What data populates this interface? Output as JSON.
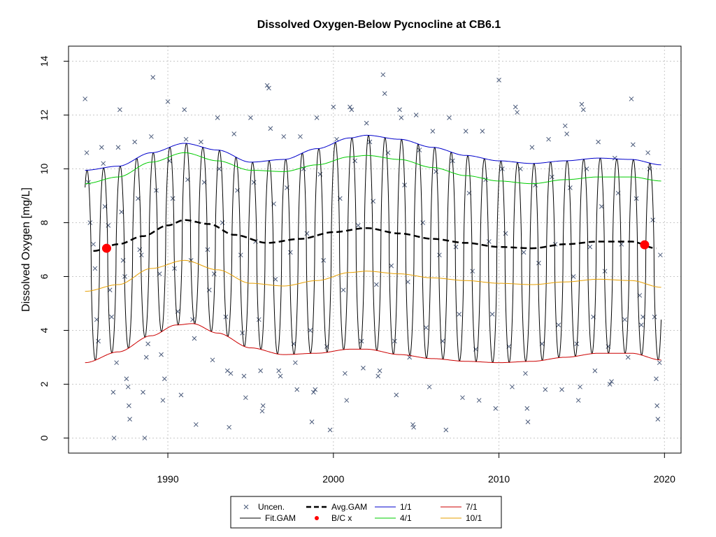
{
  "chart_data": {
    "type": "line",
    "title": "Dissolved Oxygen-Below Pycnocline at CB6.1",
    "xlabel": "",
    "ylabel": "Dissolved Oxygen [mg/L]",
    "xlim": [
      1984.0,
      2021.0
    ],
    "ylim": [
      -0.56,
      14.56
    ],
    "xticks": [
      1990,
      2000,
      2010,
      2020
    ],
    "yticks": [
      0,
      2,
      4,
      6,
      8,
      10,
      12,
      14
    ],
    "grid": true,
    "legend_position": "bottom",
    "legend": [
      {
        "label": "Uncen.",
        "kind": "marker-x",
        "color": "#4a5a7a"
      },
      {
        "label": "Fit.GAM",
        "kind": "line",
        "color": "#000000"
      },
      {
        "label": "Avg.GAM",
        "kind": "dashed-line",
        "color": "#000000"
      },
      {
        "label": "B/C x",
        "kind": "marker-dot",
        "color": "#ff0000"
      },
      {
        "label": "1/1",
        "kind": "line",
        "color": "#0000cc"
      },
      {
        "label": "4/1",
        "kind": "line",
        "color": "#00cc00"
      },
      {
        "label": "7/1",
        "kind": "line",
        "color": "#cc0000"
      },
      {
        "label": "10/1",
        "kind": "line",
        "color": "#e69f00"
      }
    ],
    "series": [
      {
        "name": "1/1",
        "color": "#0000cc",
        "x": [
          1985.0,
          1987.0,
          1989.0,
          1991.0,
          1993.0,
          1995.0,
          1997.0,
          1999.0,
          2001.0,
          2002.0,
          2004.0,
          2006.0,
          2008.0,
          2010.0,
          2012.0,
          2014.0,
          2016.0,
          2018.0,
          2019.8
        ],
        "y": [
          9.95,
          10.1,
          10.6,
          10.95,
          10.7,
          10.25,
          10.35,
          10.75,
          11.15,
          11.25,
          11.1,
          10.8,
          10.5,
          10.3,
          10.2,
          10.3,
          10.4,
          10.35,
          10.15
        ]
      },
      {
        "name": "4/1",
        "color": "#00cc00",
        "x": [
          1985.0,
          1987.0,
          1989.0,
          1991.0,
          1993.0,
          1995.0,
          1997.0,
          1999.0,
          2001.0,
          2002.0,
          2004.0,
          2006.0,
          2008.0,
          2010.0,
          2012.0,
          2014.0,
          2016.0,
          2018.0,
          2019.8
        ],
        "y": [
          9.45,
          9.7,
          10.25,
          10.6,
          10.3,
          9.95,
          9.9,
          10.15,
          10.45,
          10.5,
          10.35,
          10.05,
          9.75,
          9.55,
          9.45,
          9.6,
          9.7,
          9.7,
          9.55
        ]
      },
      {
        "name": "7/1",
        "color": "#cc0000",
        "x": [
          1985.0,
          1987.0,
          1989.0,
          1990.5,
          1991.5,
          1993.0,
          1995.0,
          1997.0,
          1999.0,
          2001.0,
          2002.0,
          2004.0,
          2006.0,
          2008.0,
          2010.0,
          2012.0,
          2014.0,
          2016.0,
          2018.0,
          2019.8
        ],
        "y": [
          2.8,
          3.2,
          3.8,
          4.2,
          4.25,
          3.9,
          3.35,
          3.1,
          3.15,
          3.3,
          3.3,
          3.1,
          2.95,
          2.85,
          2.8,
          2.85,
          3.0,
          3.15,
          3.15,
          2.9
        ]
      },
      {
        "name": "10/1",
        "color": "#e69f00",
        "x": [
          1985.0,
          1987.0,
          1989.0,
          1991.0,
          1993.0,
          1995.0,
          1997.0,
          1999.0,
          2001.0,
          2002.0,
          2004.0,
          2006.0,
          2008.0,
          2010.0,
          2012.0,
          2014.0,
          2016.0,
          2018.0,
          2019.8
        ],
        "y": [
          5.45,
          5.7,
          6.3,
          6.6,
          6.25,
          5.75,
          5.65,
          5.85,
          6.15,
          6.2,
          6.1,
          5.95,
          5.85,
          5.75,
          5.7,
          5.8,
          5.9,
          5.85,
          5.6
        ]
      },
      {
        "name": "Avg.GAM",
        "color": "#000000",
        "dashed": true,
        "x": [
          1985.5,
          1987.0,
          1988.5,
          1990.0,
          1991.0,
          1992.5,
          1994.0,
          1996.0,
          1998.0,
          2000.0,
          2002.0,
          2004.0,
          2006.0,
          2008.0,
          2010.0,
          2012.0,
          2014.0,
          2016.0,
          2018.0,
          2019.5
        ],
        "y": [
          6.95,
          7.2,
          7.5,
          7.9,
          8.1,
          7.95,
          7.55,
          7.25,
          7.4,
          7.65,
          7.8,
          7.6,
          7.4,
          7.25,
          7.1,
          7.05,
          7.2,
          7.3,
          7.3,
          7.05
        ]
      },
      {
        "name": "Fit.GAM",
        "color": "#000000",
        "seasonal": true,
        "x_start": 1985.0,
        "x_end": 2019.8,
        "upper_from": "1/1",
        "lower_from": "7/1",
        "peak_phase": 0.12,
        "sharpness": 1.6
      }
    ],
    "bc_points": [
      {
        "x": 1986.3,
        "y": 7.05,
        "label": "B/C x"
      },
      {
        "x": 2018.8,
        "y": 7.18,
        "label": "B/C x"
      }
    ],
    "uncensored_points": [
      [
        1985.0,
        12.6
      ],
      [
        1985.1,
        10.6
      ],
      [
        1985.2,
        9.5
      ],
      [
        1985.3,
        8.0
      ],
      [
        1985.5,
        7.2
      ],
      [
        1985.6,
        6.3
      ],
      [
        1985.7,
        4.4
      ],
      [
        1985.8,
        3.6
      ],
      [
        1986.0,
        10.8
      ],
      [
        1986.1,
        10.2
      ],
      [
        1986.2,
        8.6
      ],
      [
        1986.4,
        7.9
      ],
      [
        1986.5,
        5.5
      ],
      [
        1986.6,
        4.5
      ],
      [
        1986.7,
        1.7
      ],
      [
        1986.75,
        0.0
      ],
      [
        1986.9,
        2.8
      ],
      [
        1987.0,
        10.8
      ],
      [
        1987.2,
        8.4
      ],
      [
        1987.3,
        6.6
      ],
      [
        1987.4,
        6.0
      ],
      [
        1987.5,
        2.2
      ],
      [
        1987.6,
        1.9
      ],
      [
        1987.65,
        1.2
      ],
      [
        1987.7,
        0.7
      ],
      [
        1987.1,
        12.2
      ],
      [
        1988.0,
        11.0
      ],
      [
        1988.2,
        8.9
      ],
      [
        1988.3,
        7.0
      ],
      [
        1988.5,
        1.7
      ],
      [
        1988.6,
        0.0
      ],
      [
        1988.7,
        3.0
      ],
      [
        1988.8,
        3.5
      ],
      [
        1988.4,
        6.8
      ],
      [
        1989.0,
        11.2
      ],
      [
        1989.1,
        13.4
      ],
      [
        1989.3,
        9.2
      ],
      [
        1989.5,
        6.1
      ],
      [
        1989.6,
        3.1
      ],
      [
        1989.7,
        1.4
      ],
      [
        1989.8,
        2.2
      ],
      [
        1990.0,
        12.5
      ],
      [
        1990.1,
        10.3
      ],
      [
        1990.3,
        8.9
      ],
      [
        1990.4,
        6.3
      ],
      [
        1990.6,
        4.7
      ],
      [
        1990.8,
        1.6
      ],
      [
        1991.0,
        12.2
      ],
      [
        1991.1,
        11.1
      ],
      [
        1991.2,
        9.6
      ],
      [
        1991.4,
        6.6
      ],
      [
        1991.5,
        4.4
      ],
      [
        1991.6,
        3.7
      ],
      [
        1991.7,
        0.5
      ],
      [
        1992.0,
        11.0
      ],
      [
        1992.2,
        9.5
      ],
      [
        1992.4,
        7.0
      ],
      [
        1992.5,
        5.5
      ],
      [
        1992.7,
        2.9
      ],
      [
        1992.8,
        6.1
      ],
      [
        1993.0,
        11.9
      ],
      [
        1993.1,
        10.0
      ],
      [
        1993.3,
        8.0
      ],
      [
        1993.5,
        4.5
      ],
      [
        1993.6,
        2.5
      ],
      [
        1993.7,
        0.4
      ],
      [
        1993.8,
        2.4
      ],
      [
        1994.0,
        11.3
      ],
      [
        1994.2,
        9.2
      ],
      [
        1994.4,
        6.8
      ],
      [
        1994.5,
        3.9
      ],
      [
        1994.6,
        2.3
      ],
      [
        1994.7,
        1.5
      ],
      [
        1995.0,
        11.9
      ],
      [
        1995.2,
        9.5
      ],
      [
        1995.3,
        7.3
      ],
      [
        1995.5,
        4.4
      ],
      [
        1995.6,
        2.5
      ],
      [
        1995.7,
        1.0
      ],
      [
        1995.75,
        1.2
      ],
      [
        1996.0,
        13.1
      ],
      [
        1996.1,
        13.0
      ],
      [
        1996.2,
        11.5
      ],
      [
        1996.4,
        8.7
      ],
      [
        1996.5,
        5.9
      ],
      [
        1996.7,
        2.5
      ],
      [
        1996.8,
        2.3
      ],
      [
        1997.0,
        11.2
      ],
      [
        1997.2,
        9.3
      ],
      [
        1997.4,
        6.9
      ],
      [
        1997.6,
        3.5
      ],
      [
        1997.7,
        2.8
      ],
      [
        1997.8,
        1.8
      ],
      [
        1998.0,
        11.2
      ],
      [
        1998.2,
        10.0
      ],
      [
        1998.4,
        7.6
      ],
      [
        1998.6,
        4.0
      ],
      [
        1998.7,
        0.6
      ],
      [
        1998.8,
        1.7
      ],
      [
        1998.9,
        1.8
      ],
      [
        1999.0,
        11.9
      ],
      [
        1999.2,
        9.8
      ],
      [
        1999.4,
        6.6
      ],
      [
        1999.6,
        3.4
      ],
      [
        1999.8,
        0.3
      ],
      [
        2000.0,
        12.3
      ],
      [
        2000.2,
        11.1
      ],
      [
        2000.4,
        8.9
      ],
      [
        2000.6,
        5.5
      ],
      [
        2000.7,
        2.4
      ],
      [
        2000.8,
        1.4
      ],
      [
        2001.0,
        12.3
      ],
      [
        2001.1,
        12.2
      ],
      [
        2001.3,
        10.3
      ],
      [
        2001.5,
        7.9
      ],
      [
        2001.7,
        3.6
      ],
      [
        2001.8,
        2.6
      ],
      [
        2002.0,
        11.7
      ],
      [
        2002.2,
        11.0
      ],
      [
        2002.4,
        8.8
      ],
      [
        2002.6,
        5.7
      ],
      [
        2002.7,
        2.3
      ],
      [
        2002.8,
        2.5
      ],
      [
        2003.0,
        13.5
      ],
      [
        2003.1,
        12.8
      ],
      [
        2003.3,
        10.6
      ],
      [
        2003.5,
        6.4
      ],
      [
        2003.7,
        3.6
      ],
      [
        2003.8,
        1.6
      ],
      [
        2004.0,
        12.2
      ],
      [
        2004.1,
        11.9
      ],
      [
        2004.3,
        9.4
      ],
      [
        2004.5,
        5.8
      ],
      [
        2004.6,
        3.0
      ],
      [
        2004.8,
        0.5
      ],
      [
        2004.85,
        0.4
      ],
      [
        2005.0,
        12.0
      ],
      [
        2005.2,
        10.7
      ],
      [
        2005.4,
        8.0
      ],
      [
        2005.6,
        4.1
      ],
      [
        2005.8,
        1.9
      ],
      [
        2006.0,
        11.4
      ],
      [
        2006.2,
        9.9
      ],
      [
        2006.4,
        6.8
      ],
      [
        2006.6,
        3.6
      ],
      [
        2006.8,
        0.3
      ],
      [
        2007.0,
        11.9
      ],
      [
        2007.2,
        10.3
      ],
      [
        2007.4,
        7.1
      ],
      [
        2007.6,
        4.6
      ],
      [
        2007.8,
        1.5
      ],
      [
        2008.0,
        11.4
      ],
      [
        2008.2,
        9.1
      ],
      [
        2008.4,
        6.2
      ],
      [
        2008.6,
        3.3
      ],
      [
        2008.8,
        1.4
      ],
      [
        2009.0,
        11.4
      ],
      [
        2009.2,
        9.6
      ],
      [
        2009.4,
        7.3
      ],
      [
        2009.6,
        4.6
      ],
      [
        2009.8,
        1.1
      ],
      [
        2010.0,
        13.3
      ],
      [
        2010.2,
        10.0
      ],
      [
        2010.4,
        7.6
      ],
      [
        2010.6,
        3.4
      ],
      [
        2010.8,
        1.9
      ],
      [
        2011.0,
        12.3
      ],
      [
        2011.1,
        12.1
      ],
      [
        2011.3,
        10.0
      ],
      [
        2011.5,
        6.9
      ],
      [
        2011.6,
        2.4
      ],
      [
        2011.7,
        1.1
      ],
      [
        2011.75,
        0.6
      ],
      [
        2012.0,
        10.8
      ],
      [
        2012.2,
        9.4
      ],
      [
        2012.4,
        6.5
      ],
      [
        2012.6,
        3.5
      ],
      [
        2012.8,
        1.8
      ],
      [
        2013.0,
        11.1
      ],
      [
        2013.2,
        9.7
      ],
      [
        2013.4,
        7.2
      ],
      [
        2013.6,
        4.2
      ],
      [
        2013.8,
        1.8
      ],
      [
        2014.0,
        11.6
      ],
      [
        2014.1,
        11.3
      ],
      [
        2014.3,
        9.3
      ],
      [
        2014.5,
        6.0
      ],
      [
        2014.7,
        3.5
      ],
      [
        2014.8,
        1.4
      ],
      [
        2014.9,
        1.9
      ],
      [
        2015.0,
        12.4
      ],
      [
        2015.1,
        12.2
      ],
      [
        2015.3,
        10.0
      ],
      [
        2015.5,
        7.1
      ],
      [
        2015.7,
        4.5
      ],
      [
        2015.8,
        2.5
      ],
      [
        2016.0,
        11.0
      ],
      [
        2016.2,
        8.6
      ],
      [
        2016.4,
        6.2
      ],
      [
        2016.6,
        3.4
      ],
      [
        2016.7,
        2.0
      ],
      [
        2016.8,
        2.1
      ],
      [
        2017.0,
        10.4
      ],
      [
        2017.2,
        9.1
      ],
      [
        2017.4,
        7.2
      ],
      [
        2017.6,
        4.4
      ],
      [
        2017.8,
        3.0
      ],
      [
        2018.0,
        12.6
      ],
      [
        2018.1,
        10.9
      ],
      [
        2018.3,
        8.9
      ],
      [
        2018.5,
        5.3
      ],
      [
        2018.6,
        4.2
      ],
      [
        2018.7,
        4.5
      ],
      [
        2019.0,
        10.6
      ],
      [
        2019.1,
        10.0
      ],
      [
        2019.3,
        8.1
      ],
      [
        2019.4,
        4.5
      ],
      [
        2019.5,
        2.2
      ],
      [
        2019.55,
        1.2
      ],
      [
        2019.6,
        0.7
      ],
      [
        2019.7,
        2.8
      ],
      [
        2019.75,
        6.8
      ]
    ]
  }
}
